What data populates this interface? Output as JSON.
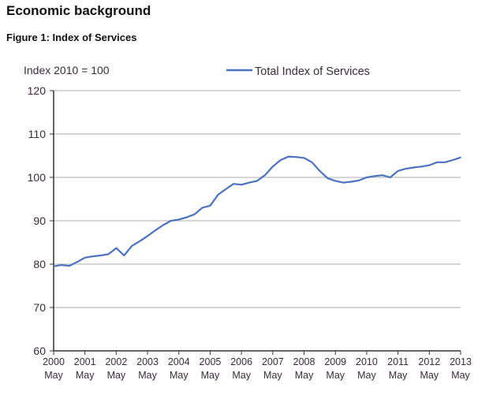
{
  "heading": "Economic background",
  "figure_title": "Figure 1: Index of Services",
  "chart_data": {
    "type": "line",
    "title": "",
    "ylabel": "Index 2010 = 100",
    "xlabel": "",
    "ylim": [
      60,
      120
    ],
    "yticks": [
      60,
      70,
      80,
      90,
      100,
      110,
      120
    ],
    "xticks": [
      {
        "year": "2000",
        "month": "May"
      },
      {
        "year": "2001",
        "month": "May"
      },
      {
        "year": "2002",
        "month": "May"
      },
      {
        "year": "2003",
        "month": "May"
      },
      {
        "year": "2004",
        "month": "May"
      },
      {
        "year": "2005",
        "month": "May"
      },
      {
        "year": "2006",
        "month": "May"
      },
      {
        "year": "2007",
        "month": "May"
      },
      {
        "year": "2008",
        "month": "May"
      },
      {
        "year": "2009",
        "month": "May"
      },
      {
        "year": "2010",
        "month": "May"
      },
      {
        "year": "2011",
        "month": "May"
      },
      {
        "year": "2012",
        "month": "May"
      },
      {
        "year": "2013",
        "month": "May"
      }
    ],
    "grid": "horizontal",
    "legend_position": "top",
    "line_color": "#4a72c0",
    "series": [
      {
        "name": "Total Index of Services",
        "x": [
          "2000-05",
          "2000-08",
          "2000-11",
          "2001-02",
          "2001-05",
          "2001-08",
          "2001-11",
          "2002-02",
          "2002-05",
          "2002-08",
          "2002-11",
          "2003-02",
          "2003-05",
          "2003-08",
          "2003-11",
          "2004-02",
          "2004-05",
          "2004-08",
          "2004-11",
          "2005-02",
          "2005-05",
          "2005-08",
          "2005-11",
          "2006-02",
          "2006-05",
          "2006-08",
          "2006-11",
          "2007-02",
          "2007-05",
          "2007-08",
          "2007-11",
          "2008-02",
          "2008-05",
          "2008-08",
          "2008-11",
          "2009-02",
          "2009-05",
          "2009-08",
          "2009-11",
          "2010-02",
          "2010-05",
          "2010-08",
          "2010-11",
          "2011-02",
          "2011-05",
          "2011-08",
          "2011-11",
          "2012-02",
          "2012-05",
          "2012-08",
          "2012-11",
          "2013-02",
          "2013-05"
        ],
        "values": [
          79.5,
          79.8,
          79.6,
          80.5,
          81.5,
          81.8,
          82.0,
          82.3,
          83.7,
          82.0,
          84.2,
          85.3,
          86.5,
          87.8,
          89.0,
          90.0,
          90.3,
          90.8,
          91.5,
          93.0,
          93.5,
          96.0,
          97.3,
          98.5,
          98.3,
          98.8,
          99.2,
          100.5,
          102.5,
          104.0,
          104.8,
          104.7,
          104.5,
          103.5,
          101.5,
          99.8,
          99.2,
          98.8,
          99.0,
          99.3,
          100.0,
          100.3,
          100.5,
          100.0,
          101.5,
          102.0,
          102.3,
          102.5,
          102.8,
          103.5,
          103.5,
          104.0,
          104.6
        ]
      }
    ]
  }
}
